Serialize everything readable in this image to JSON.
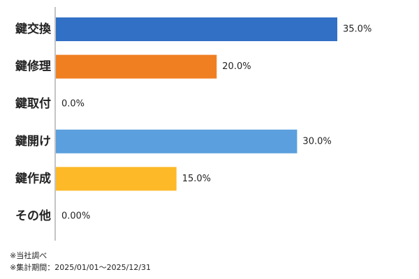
{
  "chart_data": {
    "type": "bar",
    "orientation": "horizontal",
    "categories": [
      "鍵交換",
      "鍵修理",
      "鍵取付",
      "鍵開け",
      "鍵作成",
      "その他"
    ],
    "values": [
      35.0,
      20.0,
      0.0,
      30.0,
      15.0,
      0.0
    ],
    "value_labels": [
      "35.0%",
      "20.0%",
      "0.0%",
      "30.0%",
      "15.0%",
      "0.00%"
    ],
    "colors": [
      "#3270C6",
      "#F07F22",
      "#A9A9A9",
      "#5B9FDE",
      "#FDB927",
      "#4D7ECC"
    ],
    "title": "",
    "xlabel": "",
    "ylabel": "",
    "xlim": [
      0,
      50
    ],
    "grid": false,
    "legend": "none"
  },
  "notes": {
    "source": "※当社調べ",
    "period": "※集計期間：2025/01/01～2025/12/31"
  }
}
